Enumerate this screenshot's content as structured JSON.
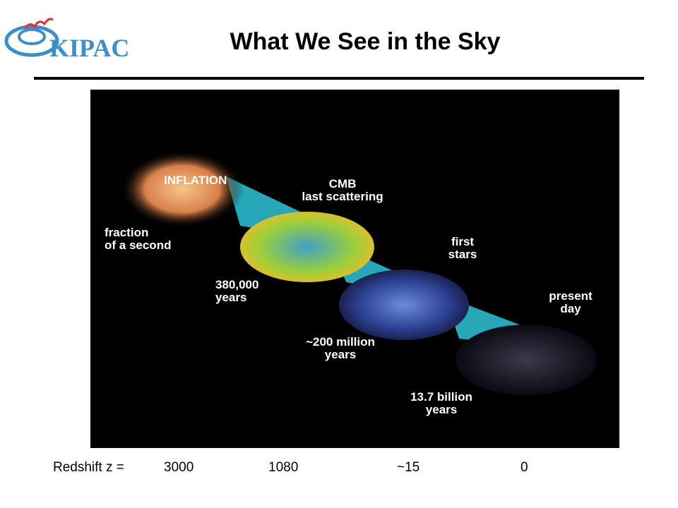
{
  "header": {
    "logo": "KIPAC",
    "title": "What We See in the Sky"
  },
  "figure": {
    "labels": [
      {
        "lines": [
          "INFLATION"
        ]
      },
      {
        "lines": [
          "CMB",
          "last scattering"
        ]
      },
      {
        "lines": [
          "fraction",
          "of a second"
        ]
      },
      {
        "lines": [
          "380,000",
          "years"
        ]
      },
      {
        "lines": [
          "first",
          "stars"
        ]
      },
      {
        "lines": [
          "~200 million",
          "years"
        ]
      },
      {
        "lines": [
          "present",
          "day"
        ]
      },
      {
        "lines": [
          "13.7 billion",
          "years"
        ]
      }
    ]
  },
  "redshift": {
    "label": "Redshift z =",
    "values": [
      3000,
      1080,
      "~15",
      0
    ]
  }
}
